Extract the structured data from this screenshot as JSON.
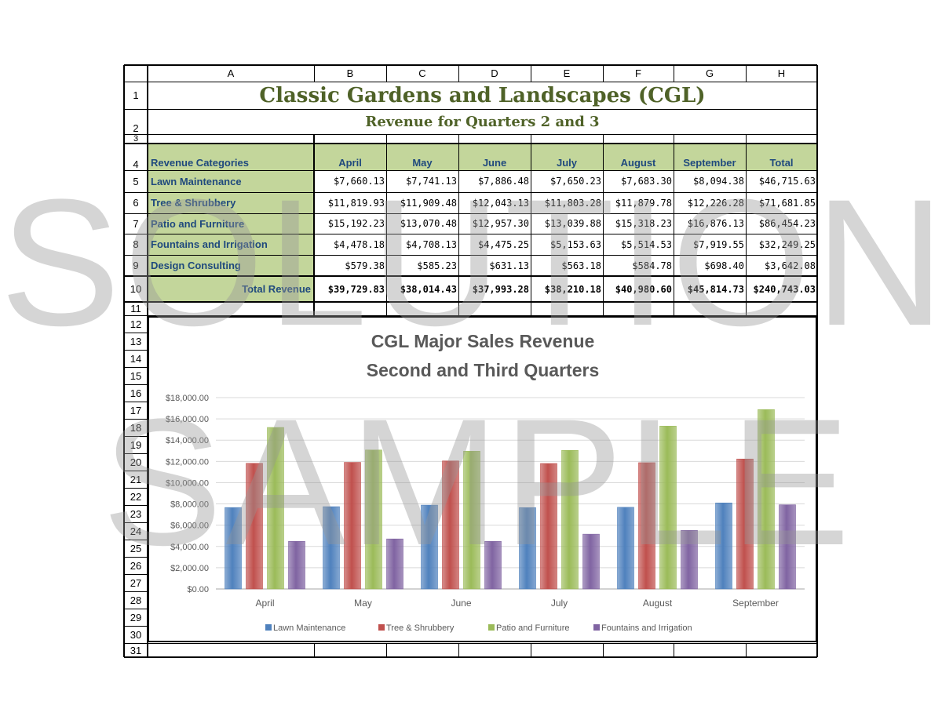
{
  "columns": [
    "A",
    "B",
    "C",
    "D",
    "E",
    "F",
    "G",
    "H"
  ],
  "title": "Classic Gardens and Landscapes (CGL)",
  "subtitle": "Revenue for Quarters 2 and 3",
  "table": {
    "header_label": "Revenue Categories",
    "months": [
      "April",
      "May",
      "June",
      "July",
      "August",
      "September",
      "Total"
    ],
    "rows": [
      {
        "label": "Lawn Maintenance",
        "values": [
          "$7,660.13",
          "$7,741.13",
          "$7,886.48",
          "$7,650.23",
          "$7,683.30",
          "$8,094.38",
          "$46,715.63"
        ]
      },
      {
        "label": "Tree & Shrubbery",
        "values": [
          "$11,819.93",
          "$11,909.48",
          "$12,043.13",
          "$11,803.28",
          "$11,879.78",
          "$12,226.28",
          "$71,681.85"
        ]
      },
      {
        "label": "Patio and Furniture",
        "values": [
          "$15,192.23",
          "$13,070.48",
          "$12,957.30",
          "$13,039.88",
          "$15,318.23",
          "$16,876.13",
          "$86,454.23"
        ]
      },
      {
        "label": "Fountains and Irrigation",
        "values": [
          "$4,478.18",
          "$4,708.13",
          "$4,475.25",
          "$5,153.63",
          "$5,514.53",
          "$7,919.55",
          "$32,249.25"
        ]
      },
      {
        "label": "Design Consulting",
        "values": [
          "$579.38",
          "$585.23",
          "$631.13",
          "$563.18",
          "$584.78",
          "$698.40",
          "$3,642.08"
        ]
      }
    ],
    "total_label": "Total Revenue",
    "totals": [
      "$39,729.83",
      "$38,014.43",
      "$37,993.28",
      "$38,210.18",
      "$40,980.60",
      "$45,814.73",
      "$240,743.03"
    ]
  },
  "watermark": {
    "line1": "SOLUTION",
    "line2": "SAMPLE"
  },
  "chart_data": {
    "type": "bar",
    "title": "CGL Major Sales Revenue",
    "subtitle": "Second and Third Quarters",
    "categories": [
      "April",
      "May",
      "June",
      "July",
      "August",
      "September"
    ],
    "series": [
      {
        "name": "Lawn Maintenance",
        "color": "#4f81bd",
        "values": [
          7660.13,
          7741.13,
          7886.48,
          7650.23,
          7683.3,
          8094.38
        ]
      },
      {
        "name": "Tree & Shrubbery",
        "color": "#c0504d",
        "values": [
          11819.93,
          11909.48,
          12043.13,
          11803.28,
          11879.78,
          12226.28
        ]
      },
      {
        "name": "Patio and Furniture",
        "color": "#9bbb59",
        "values": [
          15192.23,
          13070.48,
          12957.3,
          13039.88,
          15318.23,
          16876.13
        ]
      },
      {
        "name": "Fountains and Irrigation",
        "color": "#8064a2",
        "values": [
          4478.18,
          4708.13,
          4475.25,
          5153.63,
          5514.53,
          7919.55
        ]
      }
    ],
    "yticks": [
      "$0.00",
      "$2,000.00",
      "$4,000.00",
      "$6,000.00",
      "$8,000.00",
      "$10,000.00",
      "$12,000.00",
      "$14,000.00",
      "$16,000.00",
      "$18,000.00"
    ],
    "ylim": [
      0,
      18000
    ],
    "grid": true,
    "legend": "bottom"
  }
}
